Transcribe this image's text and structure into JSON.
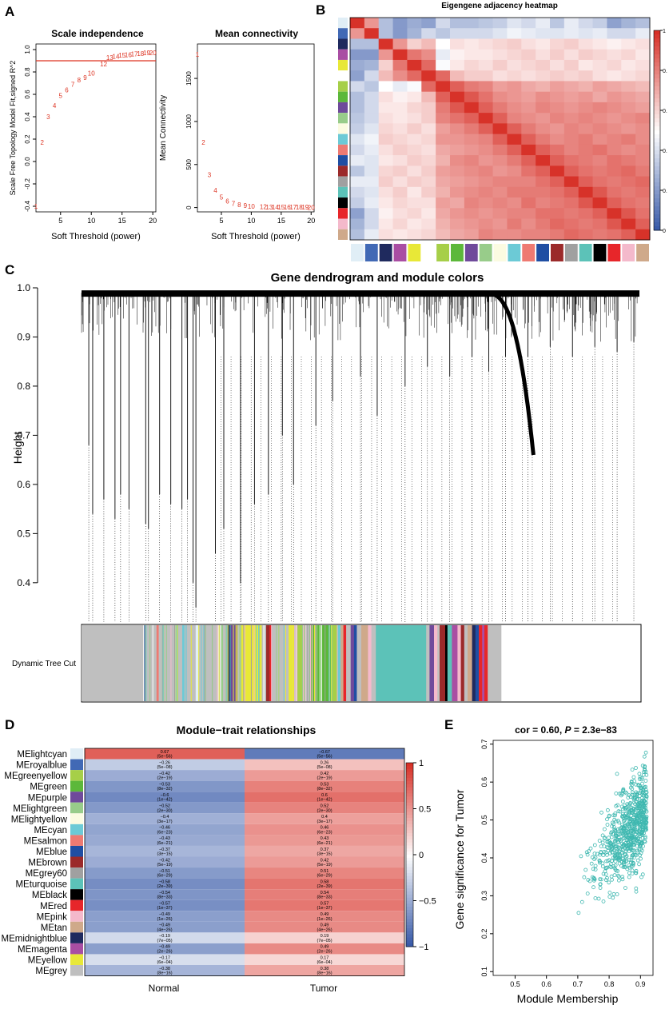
{
  "panel_labels": {
    "a": "A",
    "b": "B",
    "c": "C",
    "d": "D",
    "e": "E"
  },
  "colors": {
    "red": "#dd3322",
    "teal": "#3fb8b0",
    "heat_high": "#e8392a",
    "heat_low": "#2166ac"
  },
  "chart_data": [
    {
      "id": "scale_independence",
      "type": "scatter",
      "title": "Scale independence",
      "xlabel": "Soft Threshold (power)",
      "ylabel": "Scale Free Topology Model Fit,signed R^2",
      "xlim": [
        1,
        20.5
      ],
      "ylim": [
        -0.45,
        1.05
      ],
      "xticks": [
        "5",
        "10",
        "15",
        "20"
      ],
      "yticks": [
        "-0.4",
        "-0.2",
        "0.0",
        "0.2",
        "0.4",
        "0.6",
        "0.8",
        "1.0"
      ],
      "threshold": 0.9,
      "points": [
        {
          "x": 1,
          "y": -0.4,
          "label": "1"
        },
        {
          "x": 2,
          "y": 0.17,
          "label": "2"
        },
        {
          "x": 3,
          "y": 0.4,
          "label": "3"
        },
        {
          "x": 4,
          "y": 0.5,
          "label": "4"
        },
        {
          "x": 5,
          "y": 0.59,
          "label": "5"
        },
        {
          "x": 6,
          "y": 0.64,
          "label": "6"
        },
        {
          "x": 7,
          "y": 0.69,
          "label": "7"
        },
        {
          "x": 8,
          "y": 0.73,
          "label": "8"
        },
        {
          "x": 9,
          "y": 0.75,
          "label": "9"
        },
        {
          "x": 10,
          "y": 0.79,
          "label": "10"
        },
        {
          "x": 12,
          "y": 0.87,
          "label": "12"
        },
        {
          "x": 13,
          "y": 0.93,
          "label": "13"
        },
        {
          "x": 14,
          "y": 0.94,
          "label": "14"
        },
        {
          "x": 15,
          "y": 0.95,
          "label": "15"
        },
        {
          "x": 16,
          "y": 0.955,
          "label": "16"
        },
        {
          "x": 17,
          "y": 0.96,
          "label": "17"
        },
        {
          "x": 18,
          "y": 0.965,
          "label": "18"
        },
        {
          "x": 19,
          "y": 0.97,
          "label": "19"
        },
        {
          "x": 20,
          "y": 0.97,
          "label": "20"
        }
      ]
    },
    {
      "id": "mean_connectivity",
      "type": "scatter",
      "title": "Mean connectivity",
      "xlabel": "Soft Threshold (power)",
      "ylabel": "Mean Connectivity",
      "xlim": [
        1,
        20.5
      ],
      "ylim": [
        -50,
        1900
      ],
      "xticks": [
        "5",
        "10",
        "15",
        "20"
      ],
      "yticks": [
        "0",
        "500",
        "1000",
        "1500"
      ],
      "points": [
        {
          "x": 1,
          "y": 1780,
          "label": "1"
        },
        {
          "x": 2,
          "y": 760,
          "label": "2"
        },
        {
          "x": 3,
          "y": 380,
          "label": "3"
        },
        {
          "x": 4,
          "y": 200,
          "label": "4"
        },
        {
          "x": 5,
          "y": 120,
          "label": "5"
        },
        {
          "x": 6,
          "y": 75,
          "label": "6"
        },
        {
          "x": 7,
          "y": 48,
          "label": "7"
        },
        {
          "x": 8,
          "y": 32,
          "label": "8"
        },
        {
          "x": 9,
          "y": 22,
          "label": "9"
        },
        {
          "x": 10,
          "y": 16,
          "label": "10"
        },
        {
          "x": 12,
          "y": 10,
          "label": "12"
        },
        {
          "x": 13,
          "y": 8,
          "label": "13"
        },
        {
          "x": 14,
          "y": 7,
          "label": "14"
        },
        {
          "x": 15,
          "y": 6,
          "label": "15"
        },
        {
          "x": 16,
          "y": 5,
          "label": "16"
        },
        {
          "x": 17,
          "y": 5,
          "label": "17"
        },
        {
          "x": 18,
          "y": 4,
          "label": "18"
        },
        {
          "x": 19,
          "y": 4,
          "label": "19"
        },
        {
          "x": 20,
          "y": 3,
          "label": "20"
        }
      ]
    },
    {
      "id": "eigengene_heatmap",
      "type": "heatmap",
      "title": "Eigengene adjacency heatmap",
      "colorbar_ticks": [
        "1",
        "0.",
        "0.",
        "0.",
        "0.",
        "0"
      ],
      "module_colors": [
        "#e0eef6",
        "#4169b5",
        "#1f2a5e",
        "#a94ea3",
        "#e8e837",
        "#ffffff",
        "#a6cf48",
        "#5cb83a",
        "#6f4a9b",
        "#98cc8a",
        "#fbfbe1",
        "#6ccad6",
        "#ee7a72",
        "#1f4ea3",
        "#9b2a2a",
        "#a0a0a0",
        "#5cc2b8",
        "#000000",
        "#e7262a",
        "#f4b9cb",
        "#cfa98a"
      ],
      "matrix_rows": [
        "red|1.00 0.78 0.38 0.28 0.33 0.30 0.45 0.38 0.38 0.40 0.42 0.48 0.45 0.50 0.40 0.50 0.45 0.42 0.30 0.35 0.38",
        "r1|0.78 1.00 0.38 0.28 0.35 0.45 0.40 0.45 0.45 0.45 0.48 0.52 0.50 0.48 0.48 0.50 0.48 0.50 0.45 0.45 0.50",
        "r2|0.38 0.38 1.00 0.78 0.65 0.70 0.55 0.62 0.60 0.62 0.64 0.66 0.62 0.60 0.64 0.66 0.62 0.60 0.58 0.60 0.62",
        "r3|0.28 0.28 0.78 1.00 0.85 0.80 0.50 0.58 0.60 0.60 0.62 0.64 0.66 0.62 0.66 0.62 0.66 0.64 0.62 0.64 0.60",
        "r4|0.33 0.35 0.65 0.85 1.00 0.88 0.54 0.60 0.64 0.62 0.66 0.62 0.64 0.66 0.62 0.66 0.60 0.62 0.64 0.60 0.62",
        "r5|0.30 0.45 0.70 0.80 0.88 1.00 0.88 0.70 0.66 0.66 0.62 0.64 0.62 0.64 0.66 0.64 0.66 0.62 0.60 0.62 0.64",
        "r6|0.45 0.40 0.55 0.50 0.54 0.88 1.00 0.90 0.84 0.82 0.76 0.78 0.74 0.72 0.76 0.74 0.72 0.76 0.74 0.72 0.70",
        "r7|0.38 0.45 0.62 0.58 0.60 0.70 0.90 1.00 0.92 0.86 0.80 0.78 0.76 0.80 0.78 0.76 0.78 0.74 0.78 0.76 0.74",
        "r8|0.38 0.45 0.60 0.60 0.64 0.66 0.84 0.92 1.00 0.90 0.84 0.80 0.78 0.82 0.80 0.78 0.80 0.82 0.80 0.78 0.76",
        "r9|0.40 0.45 0.62 0.60 0.62 0.66 0.82 0.86 0.90 1.00 0.90 0.82 0.80 0.78 0.82 0.80 0.82 0.80 0.78 0.80 0.82",
        "r10|0.42 0.48 0.64 0.62 0.66 0.62 0.76 0.80 0.84 0.90 1.00 0.90 0.84 0.80 0.78 0.82 0.80 0.82 0.80 0.78 0.80",
        "r11|0.48 0.52 0.66 0.64 0.62 0.64 0.78 0.78 0.80 0.82 0.90 1.00 0.90 0.84 0.80 0.82 0.84 0.80 0.82 0.84 0.80",
        "r12|0.45 0.50 0.62 0.66 0.64 0.62 0.74 0.76 0.78 0.80 0.84 0.90 1.00 0.90 0.86 0.82 0.84 0.86 0.82 0.80 0.82",
        "r13|0.50 0.48 0.60 0.62 0.66 0.64 0.72 0.80 0.82 0.78 0.80 0.84 0.90 1.00 0.90 0.86 0.84 0.82 0.86 0.84 0.82",
        "r14|0.40 0.48 0.64 0.66 0.62 0.66 0.76 0.78 0.80 0.82 0.78 0.80 0.86 0.90 1.00 0.90 0.86 0.84 0.86 0.88 0.84",
        "r15|0.50 0.50 0.66 0.62 0.66 0.64 0.74 0.76 0.78 0.80 0.82 0.82 0.82 0.86 0.90 1.00 0.90 0.86 0.84 0.86 0.88",
        "r16|0.45 0.48 0.62 0.66 0.60 0.66 0.72 0.78 0.80 0.82 0.80 0.84 0.84 0.84 0.86 0.90 1.00 0.92 0.86 0.84 0.86",
        "r17|0.42 0.50 0.60 0.64 0.62 0.62 0.76 0.74 0.82 0.80 0.82 0.80 0.86 0.82 0.84 0.86 0.92 1.00 0.90 0.86 0.84",
        "r18|0.30 0.45 0.58 0.62 0.64 0.60 0.74 0.78 0.80 0.78 0.80 0.82 0.82 0.86 0.86 0.84 0.86 0.90 1.00 0.92 0.86",
        "r19|0.35 0.45 0.60 0.64 0.60 0.62 0.72 0.76 0.78 0.80 0.78 0.84 0.80 0.84 0.88 0.86 0.84 0.86 0.92 1.00 0.90",
        "r20|0.38 0.50 0.62 0.60 0.62 0.64 0.70 0.74 0.76 0.82 0.80 0.80 0.82 0.82 0.84 0.88 0.86 0.84 0.86 0.90 1.00"
      ]
    },
    {
      "id": "gene_dendrogram",
      "type": "dendrogram",
      "title": "Gene dendrogram and module colors",
      "ylabel": "Height",
      "ylim": [
        0.32,
        1.0
      ],
      "yticks": [
        "0.4",
        "0.5",
        "0.6",
        "0.7",
        "0.8",
        "0.9",
        "1.0"
      ],
      "track_label": "Dynamic Tree Cut",
      "branches": [
        {
          "x": 0.013,
          "y": 0.68
        },
        {
          "x": 0.02,
          "y": 0.54
        },
        {
          "x": 0.04,
          "y": 0.57
        },
        {
          "x": 0.06,
          "y": 0.53
        },
        {
          "x": 0.07,
          "y": 0.58
        },
        {
          "x": 0.085,
          "y": 0.55
        },
        {
          "x": 0.115,
          "y": 0.52
        },
        {
          "x": 0.12,
          "y": 0.51
        },
        {
          "x": 0.14,
          "y": 0.58
        },
        {
          "x": 0.16,
          "y": 0.56
        },
        {
          "x": 0.18,
          "y": 0.55
        },
        {
          "x": 0.19,
          "y": 0.57
        },
        {
          "x": 0.2,
          "y": 0.4
        },
        {
          "x": 0.205,
          "y": 0.35
        },
        {
          "x": 0.24,
          "y": 0.46
        },
        {
          "x": 0.255,
          "y": 0.51
        },
        {
          "x": 0.285,
          "y": 0.4
        },
        {
          "x": 0.31,
          "y": 0.56
        },
        {
          "x": 0.335,
          "y": 0.58
        },
        {
          "x": 0.36,
          "y": 0.7
        },
        {
          "x": 0.38,
          "y": 0.6
        },
        {
          "x": 0.42,
          "y": 0.72
        },
        {
          "x": 0.45,
          "y": 0.77
        },
        {
          "x": 0.5,
          "y": 0.82
        },
        {
          "x": 0.53,
          "y": 0.74
        },
        {
          "x": 0.58,
          "y": 0.8
        },
        {
          "x": 0.62,
          "y": 0.84
        },
        {
          "x": 0.66,
          "y": 0.82
        },
        {
          "x": 0.7,
          "y": 0.86
        },
        {
          "x": 0.73,
          "y": 0.83
        },
        {
          "x": 0.76,
          "y": 0.86
        },
        {
          "x": 0.8,
          "y": 0.86
        },
        {
          "x": 0.84,
          "y": 0.88
        },
        {
          "x": 0.88,
          "y": 0.86
        },
        {
          "x": 0.92,
          "y": 0.88
        },
        {
          "x": 0.96,
          "y": 0.87
        },
        {
          "x": 0.99,
          "y": 0.89
        }
      ],
      "big_branch": {
        "x0": 0.72,
        "x1": 0.81,
        "y": 0.66
      },
      "segments": [
        {
          "w": 0.11,
          "c": "#bfbfbf"
        },
        {
          "w": 0.006,
          "c": "#4169b5"
        },
        {
          "w": 0.018,
          "c": "#bfbfbf"
        },
        {
          "w": 0.004,
          "c": "#ee7a72"
        },
        {
          "w": 0.03,
          "c": "#bfbfbf"
        },
        {
          "w": 0.004,
          "c": "#e8e837"
        },
        {
          "w": 0.008,
          "c": "#bfbfbf"
        },
        {
          "w": 0.004,
          "c": "#6ccad6"
        },
        {
          "w": 0.02,
          "c": "#bfbfbf"
        },
        {
          "w": 0.005,
          "c": "#e0eef6"
        },
        {
          "w": 0.04,
          "c": "#bfbfbf"
        },
        {
          "w": 0.004,
          "c": "#98cc8a"
        },
        {
          "w": 0.008,
          "c": "#bfbfbf"
        },
        {
          "w": 0.006,
          "c": "#1f2a5e"
        },
        {
          "w": 0.012,
          "c": "#6f4a9b"
        },
        {
          "w": 0.006,
          "c": "#bfbfbf"
        },
        {
          "w": 0.012,
          "c": "#e8e837"
        },
        {
          "w": 0.005,
          "c": "#e8e837"
        },
        {
          "w": 0.02,
          "c": "#e8e837"
        },
        {
          "w": 0.008,
          "c": "#bfbfbf"
        },
        {
          "w": 0.006,
          "c": "#9b2a2a"
        },
        {
          "w": 0.004,
          "c": "#e7262a"
        },
        {
          "w": 0.03,
          "c": "#bfbfbf"
        },
        {
          "w": 0.01,
          "c": "#e8e837"
        },
        {
          "w": 0.006,
          "c": "#bfbfbf"
        },
        {
          "w": 0.008,
          "c": "#a6cf48"
        },
        {
          "w": 0.006,
          "c": "#98cc8a"
        },
        {
          "w": 0.008,
          "c": "#bfbfbf"
        },
        {
          "w": 0.04,
          "c": "#5cb83a"
        },
        {
          "w": 0.01,
          "c": "#a6cf48"
        },
        {
          "w": 0.005,
          "c": "#6ccad6"
        },
        {
          "w": 0.005,
          "c": "#cfa98a"
        },
        {
          "w": 0.005,
          "c": "#e7262a"
        },
        {
          "w": 0.008,
          "c": "#bfbfbf"
        },
        {
          "w": 0.006,
          "c": "#6f4a9b"
        },
        {
          "w": 0.005,
          "c": "#1f4ea3"
        },
        {
          "w": 0.008,
          "c": "#bfbfbf"
        },
        {
          "w": 0.012,
          "c": "#cfa98a"
        },
        {
          "w": 0.006,
          "c": "#f4b9cb"
        },
        {
          "w": 0.008,
          "c": "#bfbfbf"
        },
        {
          "w": 0.09,
          "c": "#5cc2b8"
        },
        {
          "w": 0.006,
          "c": "#bfbfbf"
        },
        {
          "w": 0.008,
          "c": "#6f4a9b"
        },
        {
          "w": 0.006,
          "c": "#f4b9cb"
        },
        {
          "w": 0.004,
          "c": "#bfbfbf"
        },
        {
          "w": 0.01,
          "c": "#9b2a2a"
        },
        {
          "w": 0.004,
          "c": "#000000"
        },
        {
          "w": 0.008,
          "c": "#5cc2b8"
        },
        {
          "w": 0.01,
          "c": "#a94ea3"
        },
        {
          "w": 0.006,
          "c": "#f4b9cb"
        },
        {
          "w": 0.006,
          "c": "#9b2a2a"
        },
        {
          "w": 0.006,
          "c": "#bfbfbf"
        },
        {
          "w": 0.008,
          "c": "#cfa98a"
        },
        {
          "w": 0.006,
          "c": "#1f2a5e"
        },
        {
          "w": 0.006,
          "c": "#1f4ea3"
        },
        {
          "w": 0.006,
          "c": "#e7262a"
        },
        {
          "w": 0.004,
          "c": "#a94ea3"
        },
        {
          "w": 0.006,
          "c": "#e7262a"
        },
        {
          "w": 0.024,
          "c": "#bfbfbf"
        }
      ]
    },
    {
      "id": "module_trait",
      "type": "heatmap",
      "title": "Module−trait relationships",
      "columns": [
        "Normal",
        "Tumor"
      ],
      "colorbar_ticks": [
        "1",
        "0.5",
        "0",
        "−0.5",
        "−1"
      ],
      "rows": [
        {
          "name": "MElightcyan",
          "color": "#e0eef6",
          "normal": "0.67",
          "normal_p": "(5e−56)",
          "tumor": "−0.67",
          "tumor_p": "(5e−56)"
        },
        {
          "name": "MEroyalblue",
          "color": "#4169b5",
          "normal": "−0.26",
          "normal_p": "(5e−08)",
          "tumor": "0.26",
          "tumor_p": "(5e−08)"
        },
        {
          "name": "MEgreenyellow",
          "color": "#a6cf48",
          "normal": "−0.42",
          "normal_p": "(2e−19)",
          "tumor": "0.42",
          "tumor_p": "(2e−19)"
        },
        {
          "name": "MEgreen",
          "color": "#5cb83a",
          "normal": "−0.53",
          "normal_p": "(8e−32)",
          "tumor": "0.53",
          "tumor_p": "(8e−32)"
        },
        {
          "name": "MEpurple",
          "color": "#6f4a9b",
          "normal": "−0.6",
          "normal_p": "(1e−42)",
          "tumor": "0.6",
          "tumor_p": "(1e−42)"
        },
        {
          "name": "MElightgreen",
          "color": "#98cc8a",
          "normal": "−0.52",
          "normal_p": "(2e−30)",
          "tumor": "0.52",
          "tumor_p": "(2e−30)"
        },
        {
          "name": "MElightyellow",
          "color": "#fbfbe1",
          "normal": "−0.4",
          "normal_p": "(3e−17)",
          "tumor": "0.4",
          "tumor_p": "(3e−17)"
        },
        {
          "name": "MEcyan",
          "color": "#6ccad6",
          "normal": "−0.46",
          "normal_p": "(6e−23)",
          "tumor": "0.46",
          "tumor_p": "(6e−23)"
        },
        {
          "name": "MEsalmon",
          "color": "#ee7a72",
          "normal": "−0.43",
          "normal_p": "(6e−21)",
          "tumor": "0.43",
          "tumor_p": "(6e−21)"
        },
        {
          "name": "MEblue",
          "color": "#1f4ea3",
          "normal": "−0.37",
          "normal_p": "(3e−15)",
          "tumor": "0.37",
          "tumor_p": "(3e−15)"
        },
        {
          "name": "MEbrown",
          "color": "#9b2a2a",
          "normal": "−0.42",
          "normal_p": "(5e−19)",
          "tumor": "0.42",
          "tumor_p": "(5e−19)"
        },
        {
          "name": "MEgrey60",
          "color": "#a0a0a0",
          "normal": "−0.51",
          "normal_p": "(6e−29)",
          "tumor": "0.51",
          "tumor_p": "(6e−29)"
        },
        {
          "name": "MEturquoise",
          "color": "#5cc2b8",
          "normal": "−0.58",
          "normal_p": "(2e−39)",
          "tumor": "0.58",
          "tumor_p": "(2e−39)"
        },
        {
          "name": "MEblack",
          "color": "#000000",
          "normal": "−0.54",
          "normal_p": "(8e−33)",
          "tumor": "0.54",
          "tumor_p": "(8e−33)"
        },
        {
          "name": "MEred",
          "color": "#e7262a",
          "normal": "−0.57",
          "normal_p": "(1e−37)",
          "tumor": "0.57",
          "tumor_p": "(1e−37)"
        },
        {
          "name": "MEpink",
          "color": "#f4b9cb",
          "normal": "−0.49",
          "normal_p": "(1e−26)",
          "tumor": "0.49",
          "tumor_p": "(1e−26)"
        },
        {
          "name": "MEtan",
          "color": "#cfa98a",
          "normal": "−0.49",
          "normal_p": "(4e−26)",
          "tumor": "0.49",
          "tumor_p": "(4e−26)"
        },
        {
          "name": "MEmidnightblue",
          "color": "#1f2a5e",
          "normal": "−0.19",
          "normal_p": "(7e−05)",
          "tumor": "0.19",
          "tumor_p": "(7e−05)"
        },
        {
          "name": "MEmagenta",
          "color": "#a94ea3",
          "normal": "−0.49",
          "normal_p": "(2e−26)",
          "tumor": "0.49",
          "tumor_p": "(2e−26)"
        },
        {
          "name": "MEyellow",
          "color": "#e8e837",
          "normal": "−0.17",
          "normal_p": "(6e−04)",
          "tumor": "0.17",
          "tumor_p": "(6e−04)"
        },
        {
          "name": "MEgrey",
          "color": "#bfbfbf",
          "normal": "−0.38",
          "normal_p": "(8e−16)",
          "tumor": "0.38",
          "tumor_p": "(8e−16)"
        }
      ]
    },
    {
      "id": "membership_scatter",
      "type": "scatter",
      "title_stat": "cor = 0.60, ",
      "title_p": "P",
      "title_rest": " = 2.3e−83",
      "xlabel": "Module Membership",
      "ylabel": "Gene significance for Tumor",
      "xlim": [
        0.43,
        0.94
      ],
      "ylim": [
        0.09,
        0.71
      ],
      "xticks": [
        "0.5",
        "0.6",
        "0.7",
        "0.8",
        "0.9"
      ],
      "yticks": [
        "0.1",
        "0.2",
        "0.3",
        "0.4",
        "0.5",
        "0.6",
        "0.7"
      ],
      "n_points": 700,
      "correlation": 0.6
    }
  ]
}
